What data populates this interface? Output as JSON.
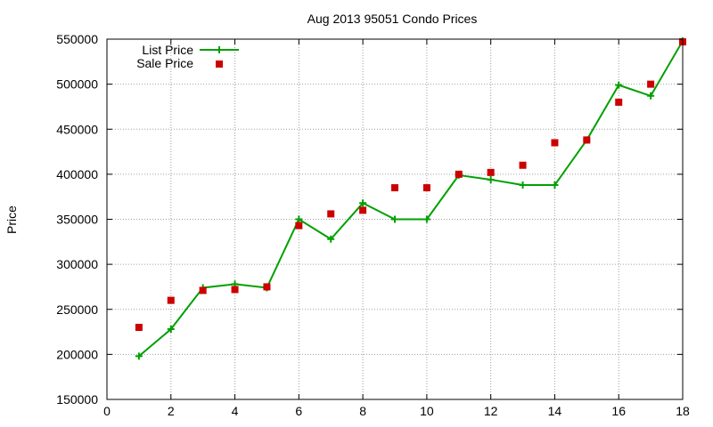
{
  "chart_data": {
    "type": "line",
    "title": "Aug 2013 95051 Condo Prices",
    "xlabel": "",
    "ylabel": "Price",
    "xlim": [
      0,
      18
    ],
    "ylim": [
      150000,
      550000
    ],
    "xticks": [
      0,
      2,
      4,
      6,
      8,
      10,
      12,
      14,
      16,
      18
    ],
    "yticks": [
      150000,
      200000,
      250000,
      300000,
      350000,
      400000,
      450000,
      500000,
      550000
    ],
    "grid": true,
    "legend_position": "top-left",
    "series": [
      {
        "name": "List Price",
        "style": "line+cross",
        "color": "#00a000",
        "x": [
          1,
          2,
          3,
          4,
          5,
          6,
          7,
          8,
          9,
          10,
          11,
          12,
          13,
          14,
          15,
          16,
          17,
          18
        ],
        "y": [
          198000,
          228000,
          274000,
          278000,
          274000,
          350000,
          328000,
          368000,
          350000,
          350000,
          399000,
          394000,
          388000,
          388000,
          438000,
          499000,
          487000,
          548000
        ]
      },
      {
        "name": "Sale Price",
        "style": "square",
        "color": "#cc0000",
        "x": [
          1,
          2,
          3,
          4,
          5,
          6,
          7,
          8,
          9,
          10,
          11,
          12,
          13,
          14,
          15,
          16,
          17,
          18
        ],
        "y": [
          230000,
          260000,
          271000,
          272000,
          275000,
          343000,
          356000,
          360000,
          385000,
          385000,
          400000,
          402000,
          410000,
          435000,
          438000,
          480000,
          500000,
          547000
        ]
      }
    ]
  }
}
